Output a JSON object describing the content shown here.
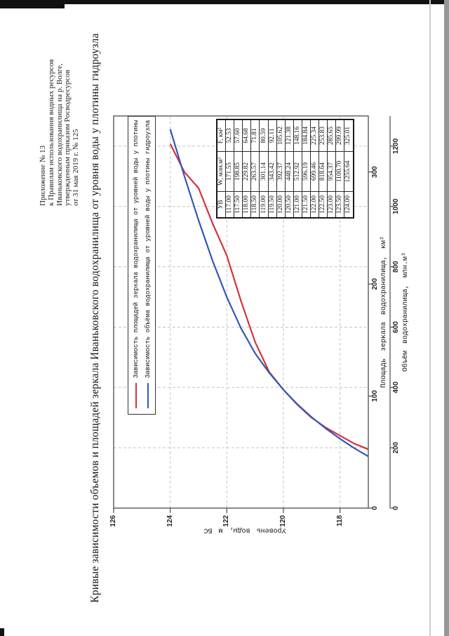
{
  "page": {
    "appendix_lines": [
      "Приложение № 13",
      "к Правилам использования водных ресурсов",
      "Иваньковского водохранилища на р. Волге,",
      "утвержденным приказом Росводресурсов",
      "от 31 мая 2019 г. № 125"
    ],
    "title": "Кривые зависимости объемов и площадей зеркала Иваньковского водохранилища от уровня воды у плотины гидроузла"
  },
  "chart_data": {
    "type": "line",
    "title": "Кривые зависимости объемов и площадей зеркала Иваньковского водохранилища от уровня воды у плотины гидроузла",
    "ylabel": "Уровень воды, м БС",
    "ylim": [
      117,
      126
    ],
    "y_ticks": [
      118,
      120,
      122,
      124,
      126
    ],
    "grid": true,
    "legend_position": "top-inside",
    "x_axes": [
      {
        "id": "area",
        "label": "Площадь зеркала водохранилища, км²",
        "ticks": [
          0,
          100,
          200,
          300
        ],
        "lim": [
          0,
          350
        ]
      },
      {
        "id": "volume",
        "label": "Объём водохранилища, млн.м³",
        "ticks": [
          0,
          200,
          400,
          600,
          800,
          1000,
          1200
        ],
        "lim": [
          0,
          1300
        ]
      }
    ],
    "levels": [
      117,
      117.5,
      118,
      118.5,
      119,
      119.5,
      120,
      120.5,
      121,
      121.5,
      122,
      122.5,
      123,
      123.5,
      124
    ],
    "series": [
      {
        "name": "Зависимость площадей зеркала водохранилища от уровней воды у плотины",
        "axis": "area",
        "color": "#d2333e",
        "values": [
          52.53,
          57.6,
          64.68,
          71.81,
          80.59,
          92.11,
          105.62,
          121.38,
          148.16,
          184.84,
          225.34,
          253.83,
          285.65,
          299.99,
          325.01
        ]
      },
      {
        "name": "Зависимость объёма водохранилища от уровней воды у плотины гидроузла",
        "axis": "volume",
        "color": "#3457b8",
        "values": [
          171.55,
          198.85,
          229.82,
          263.57,
          301.14,
          343.42,
          392.37,
          448.24,
          512.92,
          596.19,
          699.46,
          818.64,
          954.37,
          1100.7,
          1255.64
        ]
      }
    ]
  },
  "table": {
    "headers": [
      "УВ",
      "W, млн.м³",
      "F, км²"
    ],
    "rows": [
      [
        "117.00",
        "171.55",
        "52.53"
      ],
      [
        "117.50",
        "198.85",
        "57.60"
      ],
      [
        "118.00",
        "229.82",
        "64.68"
      ],
      [
        "118.50",
        "263.57",
        "71.81"
      ],
      [
        "119.00",
        "301.14",
        "80.59"
      ],
      [
        "119.50",
        "343.42",
        "92.11"
      ],
      [
        "120.00",
        "392.37",
        "105.62"
      ],
      [
        "120.50",
        "448.24",
        "121.38"
      ],
      [
        "121.00",
        "512.92",
        "148.16"
      ],
      [
        "121.50",
        "596.19",
        "184.84"
      ],
      [
        "122.00",
        "699.46",
        "225.34"
      ],
      [
        "122.50",
        "818.64",
        "253.83"
      ],
      [
        "123.00",
        "954.37",
        "285.65"
      ],
      [
        "123.50",
        "1100.70",
        "299.99"
      ],
      [
        "124.00",
        "1255.64",
        "325.01"
      ]
    ]
  },
  "colors": {
    "area_series": "#d2333e",
    "volume_series": "#3457b8",
    "axis_line": "#4a4a4a",
    "gridline": "#c4c4c4",
    "scan_black_band": "#111111",
    "scan_grey_band": "#969696"
  }
}
